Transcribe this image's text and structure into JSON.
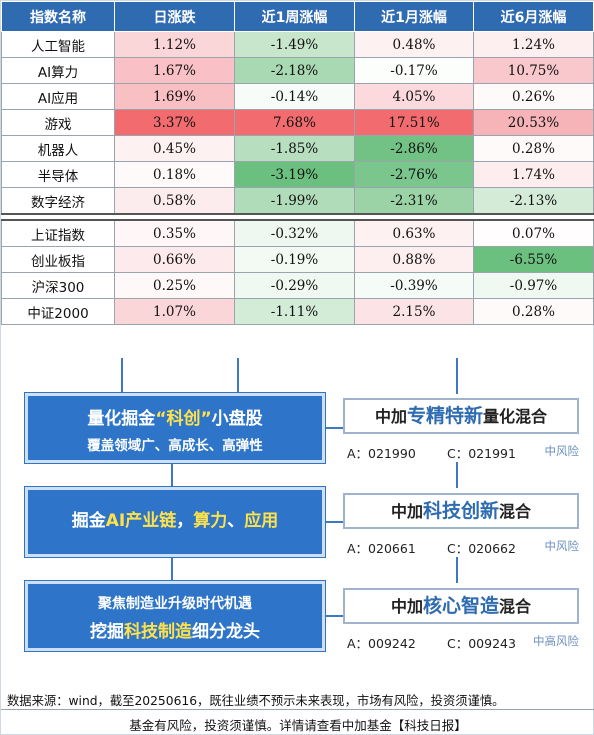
{
  "table": {
    "headers": [
      "指数名称",
      "日涨跌",
      "近1周涨幅",
      "近1月涨幅",
      "近6月涨幅"
    ],
    "group1": [
      {
        "name": "人工智能",
        "cells": [
          {
            "v": "1.12%",
            "c": "#fbd6d9"
          },
          {
            "v": "-1.49%",
            "c": "#c7e6cc"
          },
          {
            "v": "0.48%",
            "c": "#fdf1f2"
          },
          {
            "v": "1.24%",
            "c": "#fdeef0"
          }
        ]
      },
      {
        "name": "AI算力",
        "cells": [
          {
            "v": "1.67%",
            "c": "#f9c1c5"
          },
          {
            "v": "-2.18%",
            "c": "#a9d9b2"
          },
          {
            "v": "-0.17%",
            "c": "#fbfefb"
          },
          {
            "v": "10.75%",
            "c": "#f8c8cc"
          }
        ]
      },
      {
        "name": "AI应用",
        "cells": [
          {
            "v": "1.69%",
            "c": "#f9c0c4"
          },
          {
            "v": "-0.14%",
            "c": "#f7fcf8"
          },
          {
            "v": "4.05%",
            "c": "#fbd9dc"
          },
          {
            "v": "0.26%",
            "c": "#fefafa"
          }
        ]
      },
      {
        "name": "游戏",
        "cells": [
          {
            "v": "3.37%",
            "c": "#f26c6f"
          },
          {
            "v": "7.68%",
            "c": "#f26c6f"
          },
          {
            "v": "17.51%",
            "c": "#f26c6f"
          },
          {
            "v": "20.53%",
            "c": "#f6b4b8"
          }
        ]
      },
      {
        "name": "机器人",
        "cells": [
          {
            "v": "0.45%",
            "c": "#fdf1f2"
          },
          {
            "v": "-1.85%",
            "c": "#b7dfbf"
          },
          {
            "v": "-2.86%",
            "c": "#72c285"
          },
          {
            "v": "0.28%",
            "c": "#fefafa"
          }
        ]
      },
      {
        "name": "半导体",
        "cells": [
          {
            "v": "0.18%",
            "c": "#fefafa"
          },
          {
            "v": "-3.19%",
            "c": "#6cc07f"
          },
          {
            "v": "-2.76%",
            "c": "#7ac68c"
          },
          {
            "v": "1.74%",
            "c": "#fdedef"
          }
        ]
      },
      {
        "name": "数字经济",
        "cells": [
          {
            "v": "0.58%",
            "c": "#fcecee"
          },
          {
            "v": "-1.99%",
            "c": "#b1dcba"
          },
          {
            "v": "-2.31%",
            "c": "#9bd3a7"
          },
          {
            "v": "-2.13%",
            "c": "#d4ebd8"
          }
        ]
      }
    ],
    "group2": [
      {
        "name": "上证指数",
        "cells": [
          {
            "v": "0.35%",
            "c": "#fef6f7"
          },
          {
            "v": "-0.32%",
            "c": "#eef8f0"
          },
          {
            "v": "0.63%",
            "c": "#fdf1f2"
          },
          {
            "v": "0.07%",
            "c": "#fffdfd"
          }
        ]
      },
      {
        "name": "创业板指",
        "cells": [
          {
            "v": "0.66%",
            "c": "#fceaec"
          },
          {
            "v": "-0.19%",
            "c": "#f3faf4"
          },
          {
            "v": "0.88%",
            "c": "#fdeef0"
          },
          {
            "v": "-6.55%",
            "c": "#6cc07f"
          }
        ]
      },
      {
        "name": "沪深300",
        "cells": [
          {
            "v": "0.25%",
            "c": "#fef8f8"
          },
          {
            "v": "-0.29%",
            "c": "#eff8f1"
          },
          {
            "v": "-0.39%",
            "c": "#f5fbf6"
          },
          {
            "v": "-0.97%",
            "c": "#f0f8f2"
          }
        ]
      },
      {
        "name": "中证2000",
        "cells": [
          {
            "v": "1.07%",
            "c": "#fbd6d9"
          },
          {
            "v": "-1.11%",
            "c": "#d3ecd8"
          },
          {
            "v": "2.15%",
            "c": "#fbe3e6"
          },
          {
            "v": "0.28%",
            "c": "#fefafa"
          }
        ]
      }
    ]
  },
  "themes": {
    "t1": {
      "line1_a": "量化掘金",
      "line1_b": "“科创”",
      "line1_c": "小盘股",
      "line2": "覆盖领域广、高成长、高弹性"
    },
    "t2": {
      "a": "掘金",
      "b": "AI产业链",
      "c": "，",
      "d": "算力",
      "e": "、",
      "f": "应用"
    },
    "t3": {
      "line1": "聚焦制造业升级时代机遇",
      "line2_a": "挖掘",
      "line2_b": "科技制造",
      "line2_c": "细分龙头"
    }
  },
  "funds": [
    {
      "pre": "中加",
      "em": "专精特新",
      "post": "量化混合",
      "a": "A：021990",
      "c": "C：021991",
      "risk": "中风险"
    },
    {
      "pre": "中加",
      "em": "科技创新",
      "post": "混合",
      "a": "A：020661",
      "c": "C：020662",
      "risk": "中风险"
    },
    {
      "pre": "中加",
      "em": "核心智造",
      "post": "混合",
      "a": "A：009242",
      "c": "C：009243",
      "risk": "中高风险"
    }
  ],
  "footer": {
    "note": "数据来源：wind，截至20250616，既往业绩不预示未来表现，市场有风险，投资须谨慎。",
    "disclaimer": "基金有风险，投资须谨慎。详情请查看中加基金【科技日报】"
  },
  "colors": {
    "header": "#2f6bb1",
    "box": "#2e75c9",
    "highlight": "#ffe24a"
  }
}
